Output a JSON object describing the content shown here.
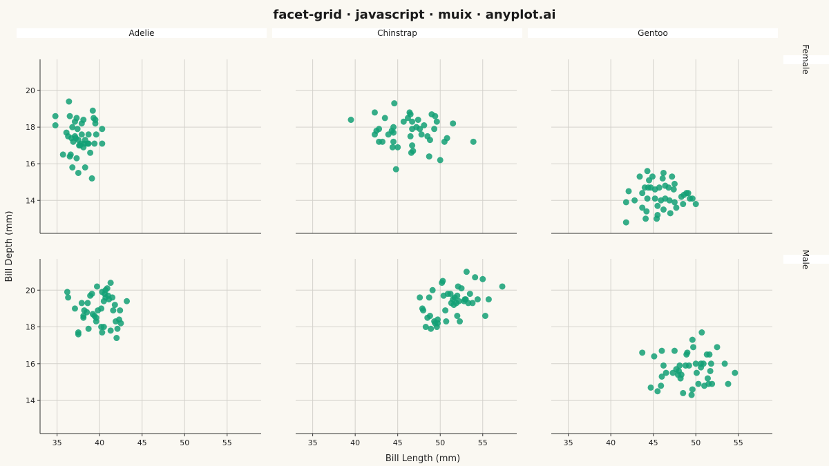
{
  "chart_data": {
    "type": "scatter",
    "title": "facet-grid · javascript · muix · anyplot.ai",
    "xlabel": "Bill Length (mm)",
    "ylabel": "Bill Depth (mm)",
    "xlim": [
      33,
      59
    ],
    "ylim": [
      12.2,
      21.7
    ],
    "xticks": [
      35,
      40,
      45,
      50,
      55
    ],
    "yticks": [
      14,
      16,
      18,
      20
    ],
    "grid": true,
    "columns": [
      "Adelie",
      "Chinstrap",
      "Gentoo"
    ],
    "rows": [
      "Female",
      "Male"
    ],
    "color": "#13A076",
    "panels": [
      {
        "row": "Female",
        "col": "Adelie",
        "points": [
          [
            34.8,
            18.6
          ],
          [
            34.8,
            18.1
          ],
          [
            36.4,
            19.4
          ],
          [
            36.1,
            17.7
          ],
          [
            36.3,
            17.5
          ],
          [
            36.5,
            18.6
          ],
          [
            36.7,
            17.4
          ],
          [
            36.8,
            18.0
          ],
          [
            36.9,
            17.2
          ],
          [
            37.1,
            18.3
          ],
          [
            37.3,
            18.5
          ],
          [
            37.1,
            17.5
          ],
          [
            37.2,
            17.4
          ],
          [
            37.4,
            17.9
          ],
          [
            37.5,
            17.3
          ],
          [
            37.7,
            17.0
          ],
          [
            37.8,
            17.1
          ],
          [
            37.9,
            17.6
          ],
          [
            38.1,
            18.4
          ],
          [
            38.2,
            17.1
          ],
          [
            38.3,
            17.3
          ],
          [
            38.7,
            17.6
          ],
          [
            38.7,
            17.1
          ],
          [
            39.2,
            18.9
          ],
          [
            39.3,
            18.5
          ],
          [
            39.5,
            18.4
          ],
          [
            39.5,
            18.2
          ],
          [
            39.6,
            17.6
          ],
          [
            39.4,
            17.1
          ],
          [
            40.3,
            17.9
          ],
          [
            40.3,
            17.1
          ],
          [
            35.7,
            16.5
          ],
          [
            36.5,
            16.4
          ],
          [
            36.6,
            16.5
          ],
          [
            37.3,
            16.3
          ],
          [
            38.1,
            16.9
          ],
          [
            38.9,
            16.6
          ],
          [
            36.8,
            15.8
          ],
          [
            37.5,
            15.5
          ],
          [
            38.3,
            15.8
          ],
          [
            39.1,
            15.2
          ],
          [
            37.6,
            17.0
          ],
          [
            38.6,
            17.1
          ],
          [
            37.9,
            18.2
          ]
        ]
      },
      {
        "row": "Female",
        "col": "Chinstrap",
        "points": [
          [
            39.5,
            18.4
          ],
          [
            42.3,
            18.8
          ],
          [
            42.5,
            17.8
          ],
          [
            42.3,
            17.6
          ],
          [
            42.8,
            17.9
          ],
          [
            42.8,
            17.2
          ],
          [
            43.2,
            17.2
          ],
          [
            43.5,
            18.5
          ],
          [
            43.9,
            17.6
          ],
          [
            44.3,
            17.8
          ],
          [
            44.5,
            17.2
          ],
          [
            44.4,
            16.9
          ],
          [
            44.5,
            17.7
          ],
          [
            44.5,
            18.0
          ],
          [
            44.6,
            19.3
          ],
          [
            45.0,
            16.9
          ],
          [
            45.7,
            18.3
          ],
          [
            46.2,
            18.5
          ],
          [
            46.4,
            18.8
          ],
          [
            46.5,
            18.7
          ],
          [
            46.7,
            18.3
          ],
          [
            46.7,
            17.9
          ],
          [
            46.5,
            17.5
          ],
          [
            46.7,
            17.0
          ],
          [
            46.8,
            16.7
          ],
          [
            46.6,
            16.6
          ],
          [
            47.2,
            18.0
          ],
          [
            47.4,
            18.4
          ],
          [
            47.6,
            17.9
          ],
          [
            47.8,
            17.6
          ],
          [
            48.1,
            18.1
          ],
          [
            48.5,
            17.5
          ],
          [
            48.7,
            16.4
          ],
          [
            48.8,
            17.3
          ],
          [
            49.0,
            18.7
          ],
          [
            49.4,
            18.6
          ],
          [
            49.6,
            18.3
          ],
          [
            49.3,
            17.9
          ],
          [
            50.0,
            16.2
          ],
          [
            50.5,
            17.2
          ],
          [
            50.8,
            17.4
          ],
          [
            51.5,
            18.2
          ],
          [
            53.9,
            17.2
          ],
          [
            44.8,
            15.7
          ]
        ]
      },
      {
        "row": "Female",
        "col": "Gentoo",
        "points": [
          [
            41.8,
            13.9
          ],
          [
            41.8,
            12.8
          ],
          [
            42.1,
            14.5
          ],
          [
            42.8,
            14.0
          ],
          [
            43.4,
            15.3
          ],
          [
            43.7,
            14.4
          ],
          [
            43.7,
            13.6
          ],
          [
            44.1,
            13.0
          ],
          [
            44.3,
            15.6
          ],
          [
            44.5,
            15.1
          ],
          [
            44.4,
            14.7
          ],
          [
            44.3,
            14.1
          ],
          [
            44.2,
            13.4
          ],
          [
            44.7,
            14.7
          ],
          [
            44.9,
            15.3
          ],
          [
            45.2,
            14.6
          ],
          [
            45.2,
            14.1
          ],
          [
            45.5,
            13.7
          ],
          [
            45.5,
            13.2
          ],
          [
            45.4,
            13.0
          ],
          [
            45.7,
            14.7
          ],
          [
            45.9,
            14.0
          ],
          [
            46.2,
            15.5
          ],
          [
            46.1,
            15.2
          ],
          [
            46.4,
            14.8
          ],
          [
            46.4,
            14.1
          ],
          [
            46.2,
            13.5
          ],
          [
            46.8,
            14.7
          ],
          [
            46.9,
            14.0
          ],
          [
            47.0,
            13.3
          ],
          [
            47.2,
            15.3
          ],
          [
            47.5,
            14.9
          ],
          [
            47.4,
            14.6
          ],
          [
            47.5,
            13.9
          ],
          [
            47.7,
            13.6
          ],
          [
            48.3,
            14.2
          ],
          [
            48.5,
            13.8
          ],
          [
            48.6,
            14.3
          ],
          [
            48.9,
            14.4
          ],
          [
            49.3,
            14.1
          ],
          [
            49.1,
            14.4
          ],
          [
            49.6,
            14.1
          ],
          [
            50.0,
            13.8
          ],
          [
            44.0,
            14.7
          ]
        ]
      },
      {
        "row": "Male",
        "col": "Adelie",
        "points": [
          [
            36.2,
            19.9
          ],
          [
            36.3,
            19.6
          ],
          [
            37.1,
            19.0
          ],
          [
            37.5,
            17.7
          ],
          [
            37.5,
            17.6
          ],
          [
            37.9,
            19.3
          ],
          [
            38.1,
            18.5
          ],
          [
            38.1,
            18.6
          ],
          [
            38.2,
            18.9
          ],
          [
            38.5,
            18.8
          ],
          [
            38.6,
            19.3
          ],
          [
            38.7,
            17.9
          ],
          [
            38.9,
            19.7
          ],
          [
            39.1,
            19.8
          ],
          [
            39.2,
            18.7
          ],
          [
            39.4,
            18.6
          ],
          [
            39.6,
            18.3
          ],
          [
            39.6,
            18.5
          ],
          [
            39.7,
            20.2
          ],
          [
            39.8,
            18.9
          ],
          [
            40.2,
            19.0
          ],
          [
            40.3,
            19.9
          ],
          [
            40.2,
            18.0
          ],
          [
            40.3,
            17.7
          ],
          [
            40.5,
            18.0
          ],
          [
            40.5,
            19.4
          ],
          [
            40.6,
            19.8
          ],
          [
            40.7,
            19.6
          ],
          [
            40.7,
            20.0
          ],
          [
            40.9,
            20.1
          ],
          [
            41.0,
            19.7
          ],
          [
            41.1,
            19.5
          ],
          [
            41.3,
            20.4
          ],
          [
            41.3,
            17.8
          ],
          [
            41.5,
            19.6
          ],
          [
            41.6,
            18.9
          ],
          [
            41.8,
            19.2
          ],
          [
            41.9,
            18.3
          ],
          [
            42.0,
            17.4
          ],
          [
            42.1,
            17.9
          ],
          [
            42.3,
            18.4
          ],
          [
            42.4,
            18.9
          ],
          [
            42.5,
            18.2
          ],
          [
            43.2,
            19.4
          ]
        ]
      },
      {
        "row": "Male",
        "col": "Chinstrap",
        "points": [
          [
            47.6,
            19.6
          ],
          [
            47.9,
            19.0
          ],
          [
            48.0,
            18.9
          ],
          [
            48.3,
            18.0
          ],
          [
            48.5,
            18.5
          ],
          [
            48.7,
            19.6
          ],
          [
            48.8,
            18.6
          ],
          [
            48.9,
            17.9
          ],
          [
            49.1,
            20.0
          ],
          [
            49.3,
            18.3
          ],
          [
            49.4,
            18.2
          ],
          [
            49.6,
            18.0
          ],
          [
            49.7,
            18.2
          ],
          [
            49.7,
            18.4
          ],
          [
            50.2,
            20.4
          ],
          [
            50.3,
            20.5
          ],
          [
            50.4,
            19.7
          ],
          [
            50.6,
            18.9
          ],
          [
            50.7,
            18.3
          ],
          [
            50.9,
            19.8
          ],
          [
            51.2,
            19.8
          ],
          [
            51.3,
            19.3
          ],
          [
            51.5,
            19.5
          ],
          [
            51.6,
            19.2
          ],
          [
            51.7,
            19.6
          ],
          [
            51.9,
            19.3
          ],
          [
            52.0,
            19.7
          ],
          [
            52.0,
            18.6
          ],
          [
            52.1,
            20.2
          ],
          [
            52.2,
            19.4
          ],
          [
            52.3,
            18.3
          ],
          [
            52.5,
            20.1
          ],
          [
            52.8,
            19.4
          ],
          [
            52.9,
            19.5
          ],
          [
            53.0,
            19.5
          ],
          [
            53.1,
            21.0
          ],
          [
            53.3,
            19.3
          ],
          [
            53.5,
            19.8
          ],
          [
            53.8,
            19.3
          ],
          [
            54.1,
            20.7
          ],
          [
            54.4,
            19.5
          ],
          [
            55.0,
            20.6
          ],
          [
            55.3,
            18.6
          ],
          [
            55.7,
            19.5
          ],
          [
            57.3,
            20.2
          ]
        ]
      },
      {
        "row": "Male",
        "col": "Gentoo",
        "points": [
          [
            43.7,
            16.6
          ],
          [
            44.7,
            14.7
          ],
          [
            45.1,
            16.4
          ],
          [
            45.5,
            14.5
          ],
          [
            45.9,
            14.8
          ],
          [
            46.0,
            16.7
          ],
          [
            46.0,
            15.3
          ],
          [
            46.2,
            15.9
          ],
          [
            46.5,
            15.5
          ],
          [
            47.3,
            15.5
          ],
          [
            47.5,
            16.7
          ],
          [
            47.7,
            15.7
          ],
          [
            47.9,
            15.4
          ],
          [
            48.0,
            15.6
          ],
          [
            48.1,
            15.9
          ],
          [
            48.2,
            15.2
          ],
          [
            48.3,
            15.4
          ],
          [
            48.5,
            14.4
          ],
          [
            48.8,
            15.9
          ],
          [
            48.9,
            16.5
          ],
          [
            49.0,
            16.6
          ],
          [
            49.2,
            15.9
          ],
          [
            49.5,
            14.3
          ],
          [
            49.6,
            14.6
          ],
          [
            49.7,
            16.9
          ],
          [
            49.6,
            17.3
          ],
          [
            50.1,
            15.5
          ],
          [
            50.3,
            14.9
          ],
          [
            50.6,
            15.8
          ],
          [
            50.6,
            16.0
          ],
          [
            50.7,
            17.7
          ],
          [
            50.9,
            16.0
          ],
          [
            51.0,
            14.8
          ],
          [
            51.3,
            16.5
          ],
          [
            51.4,
            15.2
          ],
          [
            51.5,
            14.9
          ],
          [
            51.6,
            16.5
          ],
          [
            51.7,
            15.6
          ],
          [
            51.8,
            16.0
          ],
          [
            51.9,
            14.9
          ],
          [
            52.5,
            16.9
          ],
          [
            53.4,
            16.0
          ],
          [
            53.8,
            14.9
          ],
          [
            54.6,
            15.5
          ],
          [
            50.0,
            16.0
          ]
        ]
      }
    ]
  }
}
